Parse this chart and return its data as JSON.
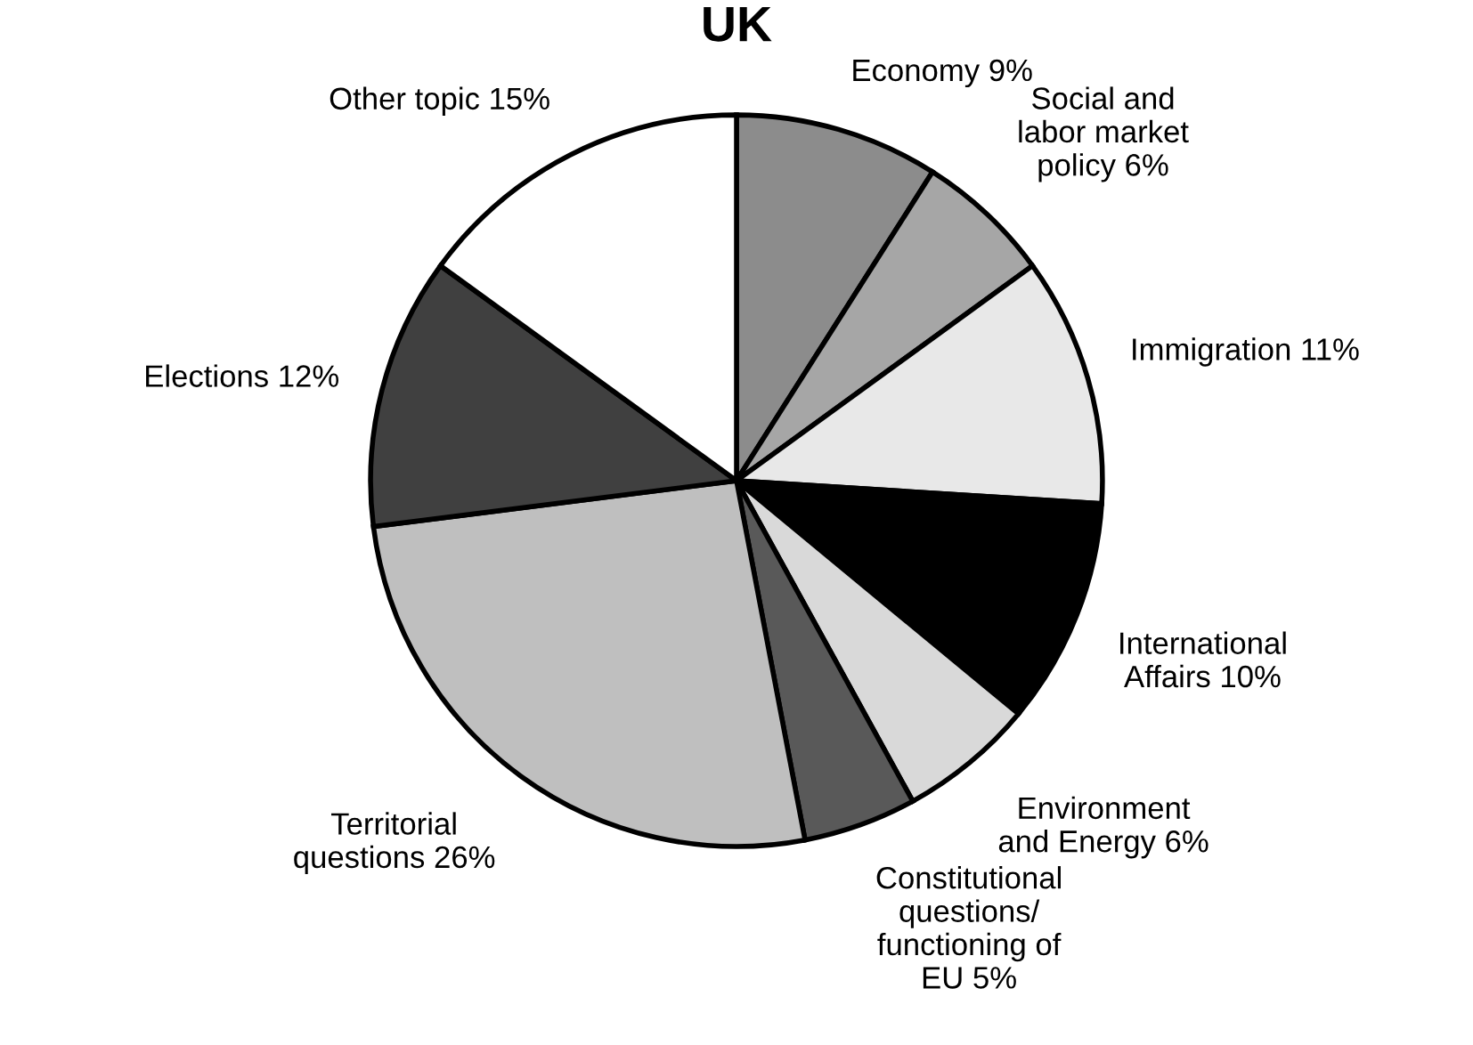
{
  "chart_data": {
    "type": "pie",
    "title": "UK",
    "categories": [
      "Economy",
      "Social and\nlabor market\npolicy",
      "Immigration",
      "International\nAffairs",
      "Environment\nand Energy",
      "Constitutional\nquestions/\nfunctioning of\nEU",
      "Territorial\nquestions",
      "Elections",
      "Other topic"
    ],
    "values": [
      9,
      6,
      11,
      10,
      6,
      5,
      26,
      12,
      15
    ],
    "value_labels": [
      "9%",
      "6%",
      "11%",
      "10%",
      "6%",
      "5%",
      "26%",
      "12%",
      "15%"
    ],
    "colors": [
      "#8c8c8c",
      "#a6a6a6",
      "#e8e8e8",
      "#000000",
      "#d9d9d9",
      "#595959",
      "#bfbfbf",
      "#404040",
      "#ffffff"
    ],
    "legend": false
  }
}
